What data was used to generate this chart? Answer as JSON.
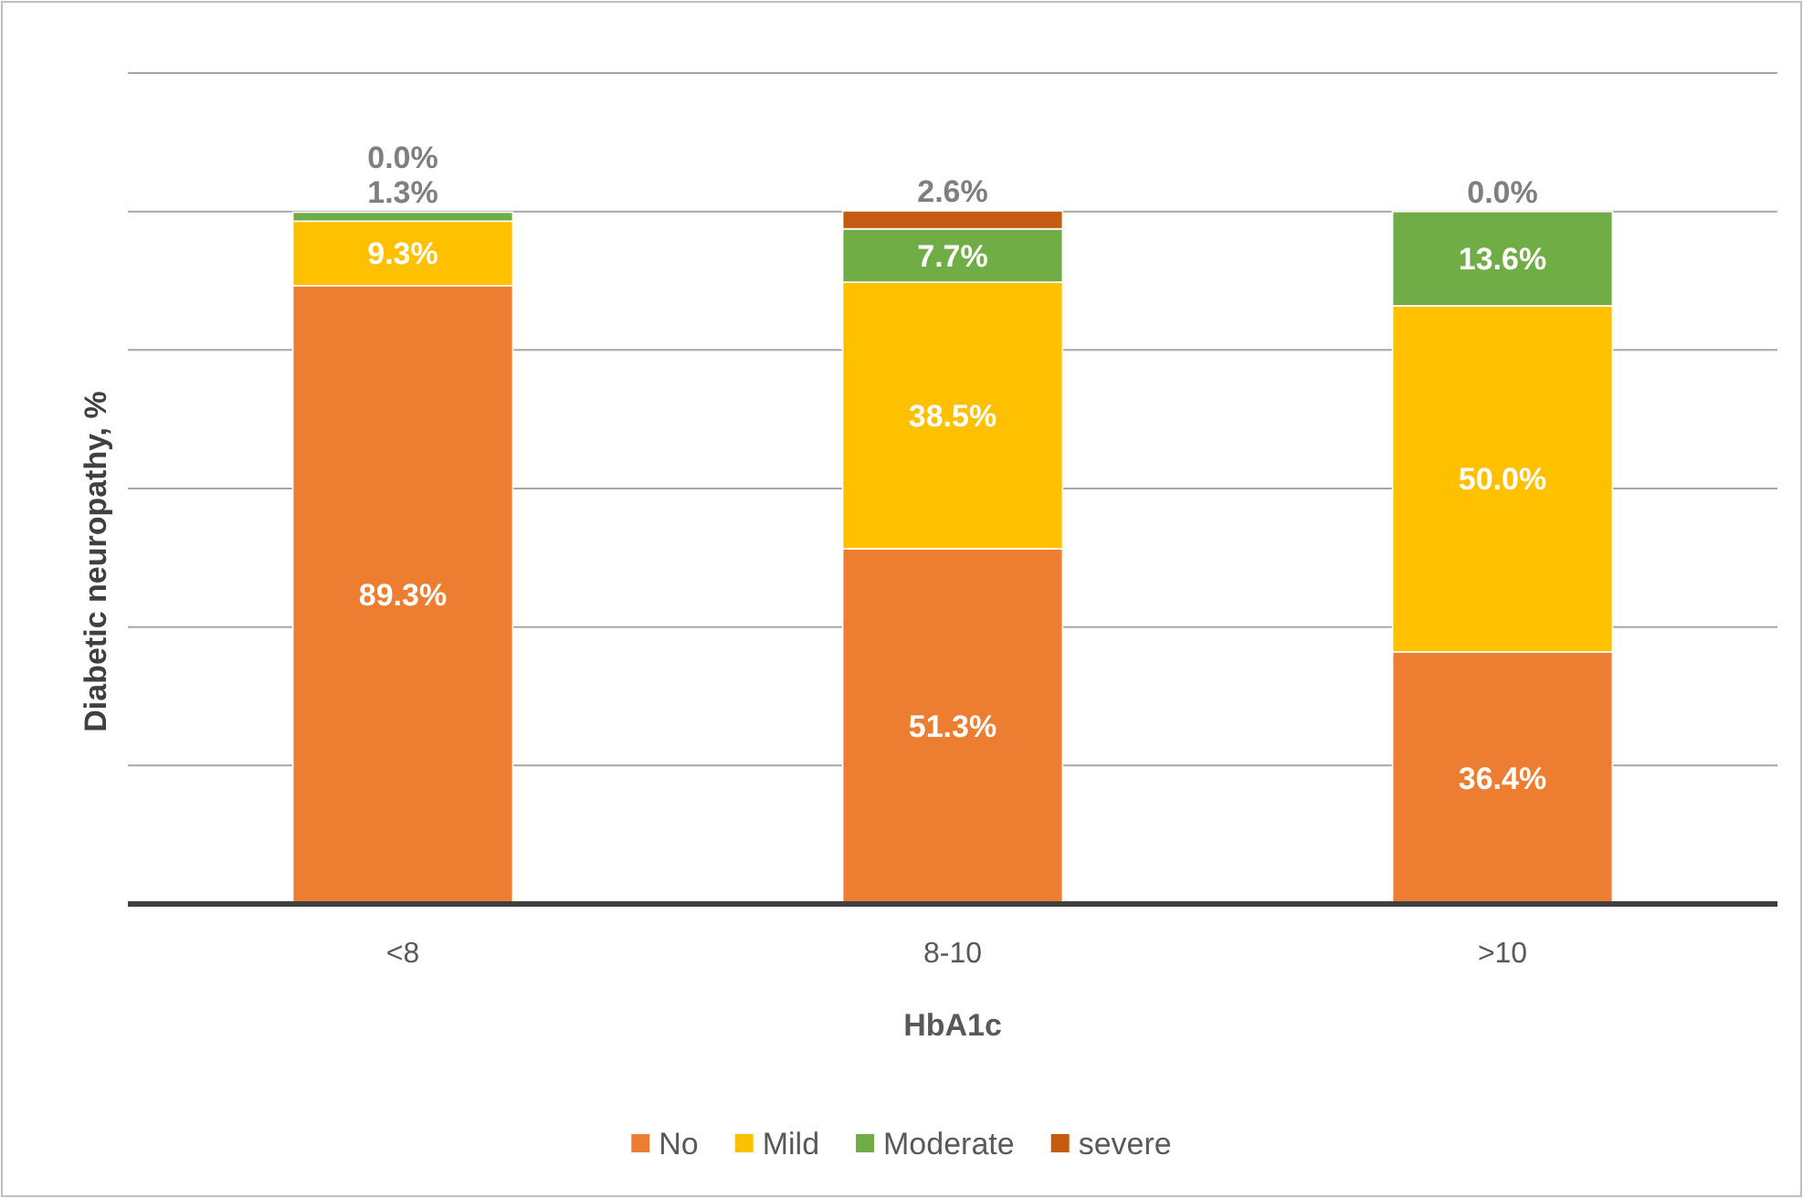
{
  "chart_data": {
    "type": "bar",
    "stacked": true,
    "xlabel": "HbA1c",
    "ylabel": "Diabetic neuropathy, %",
    "categories": [
      "<8",
      "8-10",
      ">10"
    ],
    "series": [
      {
        "name": "No",
        "color": "#ed7d31",
        "values": [
          89.3,
          51.3,
          36.4
        ],
        "value_labels": [
          "89.3%",
          "51.3%",
          "36.4%"
        ]
      },
      {
        "name": "Mild",
        "color": "#ffc000",
        "values": [
          9.3,
          38.5,
          50.0
        ],
        "value_labels": [
          "9.3%",
          "38.5%",
          "50.0%"
        ]
      },
      {
        "name": "Moderate",
        "color": "#70ad47",
        "values": [
          1.3,
          7.7,
          13.6
        ],
        "value_labels": [
          "1.3%",
          "7.7%",
          "13.6%"
        ]
      },
      {
        "name": "severe",
        "color": "#c55a11",
        "values": [
          0.0,
          2.6,
          0.0
        ],
        "value_labels": [
          "0.0%",
          "2.6%",
          "0.0%"
        ]
      }
    ],
    "ylim": [
      0,
      120
    ],
    "yticks": [
      {
        "value": 0,
        "label": null
      },
      {
        "value": 20,
        "label": null
      },
      {
        "value": 40,
        "label": null
      },
      {
        "value": 60,
        "label": null
      },
      {
        "value": 80,
        "label": null
      },
      {
        "value": 100,
        "label": null
      },
      {
        "value": 120,
        "label": null
      }
    ],
    "grid": "y",
    "tick_labels": "x",
    "legend": "bottom"
  }
}
